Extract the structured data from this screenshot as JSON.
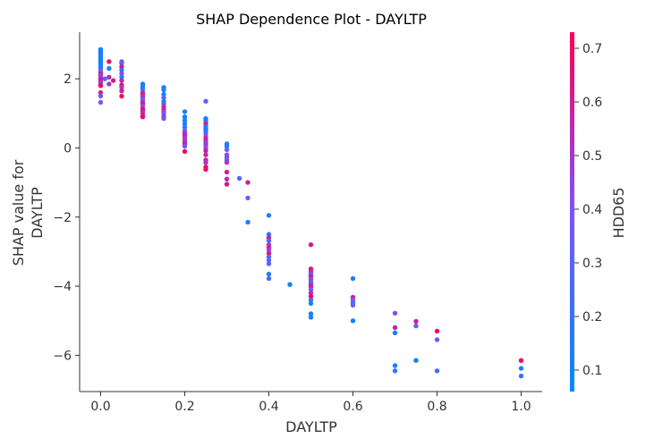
{
  "chart_data": {
    "type": "scatter",
    "title": "SHAP Dependence Plot - DAYLTP",
    "xlabel": "DAYLTP",
    "ylabel_lines": [
      "SHAP value for",
      "DAYLTP"
    ],
    "xlim": [
      -0.05,
      1.05
    ],
    "ylim": [
      -7.05,
      3.35
    ],
    "x_ticks": [
      0.0,
      0.2,
      0.4,
      0.6,
      0.8,
      1.0
    ],
    "x_tick_labels": [
      "0.0",
      "0.2",
      "0.4",
      "0.6",
      "0.8",
      "1.0"
    ],
    "y_ticks": [
      2,
      0,
      -2,
      -4,
      -6
    ],
    "y_tick_labels": [
      "2",
      "0",
      "−2",
      "−4",
      "−6"
    ],
    "colorbar": {
      "label": "HDD65",
      "range": [
        0.06,
        0.73
      ],
      "ticks": [
        0.1,
        0.2,
        0.3,
        0.4,
        0.5,
        0.6,
        0.7
      ],
      "tick_labels": [
        "0.1",
        "0.2",
        "0.3",
        "0.4",
        "0.5",
        "0.6",
        "0.7"
      ],
      "colormap": [
        "#008afb",
        "#7c52ff",
        "#ff0052"
      ]
    },
    "grid": false,
    "points": [
      {
        "x": 0.0,
        "y": 2.85,
        "c": 0.12
      },
      {
        "x": 0.0,
        "y": 2.8,
        "c": 0.1
      },
      {
        "x": 0.0,
        "y": 2.75,
        "c": 0.14
      },
      {
        "x": 0.0,
        "y": 2.7,
        "c": 0.11
      },
      {
        "x": 0.0,
        "y": 2.62,
        "c": 0.13
      },
      {
        "x": 0.0,
        "y": 2.55,
        "c": 0.1
      },
      {
        "x": 0.0,
        "y": 2.48,
        "c": 0.15
      },
      {
        "x": 0.0,
        "y": 2.42,
        "c": 0.12
      },
      {
        "x": 0.0,
        "y": 2.36,
        "c": 0.11
      },
      {
        "x": 0.0,
        "y": 2.3,
        "c": 0.22
      },
      {
        "x": 0.0,
        "y": 2.22,
        "c": 0.35
      },
      {
        "x": 0.0,
        "y": 2.15,
        "c": 0.6
      },
      {
        "x": 0.0,
        "y": 2.1,
        "c": 0.5
      },
      {
        "x": 0.0,
        "y": 2.05,
        "c": 0.42
      },
      {
        "x": 0.0,
        "y": 1.98,
        "c": 0.65
      },
      {
        "x": 0.0,
        "y": 1.92,
        "c": 0.55
      },
      {
        "x": 0.0,
        "y": 1.85,
        "c": 0.45
      },
      {
        "x": 0.0,
        "y": 1.8,
        "c": 0.7
      },
      {
        "x": 0.0,
        "y": 1.6,
        "c": 0.6
      },
      {
        "x": 0.0,
        "y": 1.5,
        "c": 0.3
      },
      {
        "x": 0.0,
        "y": 1.32,
        "c": 0.4
      },
      {
        "x": 0.02,
        "y": 2.5,
        "c": 0.68
      },
      {
        "x": 0.02,
        "y": 2.3,
        "c": 0.12
      },
      {
        "x": 0.02,
        "y": 2.05,
        "c": 0.55
      },
      {
        "x": 0.02,
        "y": 1.85,
        "c": 0.5
      },
      {
        "x": 0.01,
        "y": 2.0,
        "c": 0.3
      },
      {
        "x": 0.03,
        "y": 1.95,
        "c": 0.62
      },
      {
        "x": 0.05,
        "y": 2.5,
        "c": 0.35
      },
      {
        "x": 0.05,
        "y": 2.45,
        "c": 0.3
      },
      {
        "x": 0.05,
        "y": 2.35,
        "c": 0.62
      },
      {
        "x": 0.05,
        "y": 2.25,
        "c": 0.12
      },
      {
        "x": 0.05,
        "y": 2.15,
        "c": 0.45
      },
      {
        "x": 0.05,
        "y": 2.05,
        "c": 0.15
      },
      {
        "x": 0.05,
        "y": 1.95,
        "c": 0.55
      },
      {
        "x": 0.05,
        "y": 1.82,
        "c": 0.65
      },
      {
        "x": 0.05,
        "y": 1.75,
        "c": 0.5
      },
      {
        "x": 0.05,
        "y": 1.65,
        "c": 0.6
      },
      {
        "x": 0.05,
        "y": 1.5,
        "c": 0.7
      },
      {
        "x": 0.1,
        "y": 1.85,
        "c": 0.12
      },
      {
        "x": 0.1,
        "y": 1.78,
        "c": 0.2
      },
      {
        "x": 0.1,
        "y": 1.7,
        "c": 0.14
      },
      {
        "x": 0.1,
        "y": 1.6,
        "c": 0.55
      },
      {
        "x": 0.1,
        "y": 1.55,
        "c": 0.6
      },
      {
        "x": 0.1,
        "y": 1.48,
        "c": 0.5
      },
      {
        "x": 0.1,
        "y": 1.4,
        "c": 0.3
      },
      {
        "x": 0.1,
        "y": 1.35,
        "c": 0.45
      },
      {
        "x": 0.1,
        "y": 1.28,
        "c": 0.65
      },
      {
        "x": 0.1,
        "y": 1.2,
        "c": 0.4
      },
      {
        "x": 0.1,
        "y": 1.12,
        "c": 0.7
      },
      {
        "x": 0.1,
        "y": 1.05,
        "c": 0.55
      },
      {
        "x": 0.1,
        "y": 0.98,
        "c": 0.6
      },
      {
        "x": 0.1,
        "y": 0.9,
        "c": 0.68
      },
      {
        "x": 0.15,
        "y": 1.75,
        "c": 0.12
      },
      {
        "x": 0.15,
        "y": 1.68,
        "c": 0.15
      },
      {
        "x": 0.15,
        "y": 1.55,
        "c": 0.11
      },
      {
        "x": 0.15,
        "y": 1.45,
        "c": 0.3
      },
      {
        "x": 0.15,
        "y": 1.35,
        "c": 0.12
      },
      {
        "x": 0.15,
        "y": 1.28,
        "c": 0.2
      },
      {
        "x": 0.15,
        "y": 1.2,
        "c": 0.55
      },
      {
        "x": 0.15,
        "y": 1.12,
        "c": 0.6
      },
      {
        "x": 0.15,
        "y": 1.05,
        "c": 0.45
      },
      {
        "x": 0.15,
        "y": 0.98,
        "c": 0.4
      },
      {
        "x": 0.15,
        "y": 0.9,
        "c": 0.5
      },
      {
        "x": 0.15,
        "y": 0.85,
        "c": 0.35
      },
      {
        "x": 0.2,
        "y": 1.05,
        "c": 0.12
      },
      {
        "x": 0.2,
        "y": 0.9,
        "c": 0.12
      },
      {
        "x": 0.2,
        "y": 0.8,
        "c": 0.14
      },
      {
        "x": 0.2,
        "y": 0.7,
        "c": 0.11
      },
      {
        "x": 0.2,
        "y": 0.6,
        "c": 0.2
      },
      {
        "x": 0.2,
        "y": 0.5,
        "c": 0.3
      },
      {
        "x": 0.2,
        "y": 0.42,
        "c": 0.55
      },
      {
        "x": 0.2,
        "y": 0.35,
        "c": 0.6
      },
      {
        "x": 0.2,
        "y": 0.28,
        "c": 0.45
      },
      {
        "x": 0.2,
        "y": 0.2,
        "c": 0.5
      },
      {
        "x": 0.2,
        "y": 0.12,
        "c": 0.62
      },
      {
        "x": 0.2,
        "y": 0.05,
        "c": 0.4
      },
      {
        "x": 0.2,
        "y": -0.1,
        "c": 0.7
      },
      {
        "x": 0.25,
        "y": 1.35,
        "c": 0.3
      },
      {
        "x": 0.25,
        "y": 0.85,
        "c": 0.12
      },
      {
        "x": 0.25,
        "y": 0.78,
        "c": 0.15
      },
      {
        "x": 0.25,
        "y": 0.7,
        "c": 0.65
      },
      {
        "x": 0.25,
        "y": 0.62,
        "c": 0.14
      },
      {
        "x": 0.25,
        "y": 0.55,
        "c": 0.18
      },
      {
        "x": 0.25,
        "y": 0.48,
        "c": 0.11
      },
      {
        "x": 0.25,
        "y": 0.4,
        "c": 0.35
      },
      {
        "x": 0.25,
        "y": 0.3,
        "c": 0.55
      },
      {
        "x": 0.25,
        "y": 0.22,
        "c": 0.6
      },
      {
        "x": 0.25,
        "y": 0.15,
        "c": 0.45
      },
      {
        "x": 0.25,
        "y": 0.08,
        "c": 0.5
      },
      {
        "x": 0.25,
        "y": 0.0,
        "c": 0.4
      },
      {
        "x": 0.25,
        "y": -0.08,
        "c": 0.62
      },
      {
        "x": 0.25,
        "y": -0.2,
        "c": 0.55
      },
      {
        "x": 0.25,
        "y": -0.35,
        "c": 0.6
      },
      {
        "x": 0.25,
        "y": -0.42,
        "c": 0.5
      },
      {
        "x": 0.25,
        "y": -0.55,
        "c": 0.7
      },
      {
        "x": 0.25,
        "y": -0.62,
        "c": 0.68
      },
      {
        "x": 0.3,
        "y": 0.12,
        "c": 0.2
      },
      {
        "x": 0.3,
        "y": 0.05,
        "c": 0.12
      },
      {
        "x": 0.3,
        "y": -0.05,
        "c": 0.35
      },
      {
        "x": 0.3,
        "y": -0.2,
        "c": 0.4
      },
      {
        "x": 0.3,
        "y": -0.28,
        "c": 0.45
      },
      {
        "x": 0.3,
        "y": -0.35,
        "c": 0.3
      },
      {
        "x": 0.3,
        "y": -0.42,
        "c": 0.5
      },
      {
        "x": 0.3,
        "y": -0.7,
        "c": 0.6
      },
      {
        "x": 0.3,
        "y": -0.9,
        "c": 0.55
      },
      {
        "x": 0.3,
        "y": -1.05,
        "c": 0.65
      },
      {
        "x": 0.33,
        "y": -0.88,
        "c": 0.3
      },
      {
        "x": 0.35,
        "y": -1.0,
        "c": 0.6
      },
      {
        "x": 0.35,
        "y": -1.45,
        "c": 0.4
      },
      {
        "x": 0.35,
        "y": -2.15,
        "c": 0.12
      },
      {
        "x": 0.4,
        "y": -1.95,
        "c": 0.15
      },
      {
        "x": 0.4,
        "y": -2.5,
        "c": 0.2
      },
      {
        "x": 0.4,
        "y": -2.6,
        "c": 0.6
      },
      {
        "x": 0.4,
        "y": -2.68,
        "c": 0.25
      },
      {
        "x": 0.4,
        "y": -2.8,
        "c": 0.5
      },
      {
        "x": 0.4,
        "y": -2.88,
        "c": 0.62
      },
      {
        "x": 0.4,
        "y": -2.95,
        "c": 0.45
      },
      {
        "x": 0.4,
        "y": -3.05,
        "c": 0.65
      },
      {
        "x": 0.4,
        "y": -3.15,
        "c": 0.3
      },
      {
        "x": 0.4,
        "y": -3.25,
        "c": 0.28
      },
      {
        "x": 0.4,
        "y": -3.35,
        "c": 0.35
      },
      {
        "x": 0.4,
        "y": -3.65,
        "c": 0.15
      },
      {
        "x": 0.4,
        "y": -3.78,
        "c": 0.25
      },
      {
        "x": 0.45,
        "y": -3.95,
        "c": 0.12
      },
      {
        "x": 0.5,
        "y": -2.8,
        "c": 0.6
      },
      {
        "x": 0.5,
        "y": -3.5,
        "c": 0.65
      },
      {
        "x": 0.5,
        "y": -3.58,
        "c": 0.55
      },
      {
        "x": 0.5,
        "y": -3.65,
        "c": 0.35
      },
      {
        "x": 0.5,
        "y": -3.72,
        "c": 0.62
      },
      {
        "x": 0.5,
        "y": -3.8,
        "c": 0.45
      },
      {
        "x": 0.5,
        "y": -3.88,
        "c": 0.3
      },
      {
        "x": 0.5,
        "y": -3.95,
        "c": 0.5
      },
      {
        "x": 0.5,
        "y": -4.02,
        "c": 0.6
      },
      {
        "x": 0.5,
        "y": -4.1,
        "c": 0.4
      },
      {
        "x": 0.5,
        "y": -4.2,
        "c": 0.55
      },
      {
        "x": 0.5,
        "y": -4.3,
        "c": 0.7
      },
      {
        "x": 0.5,
        "y": -4.4,
        "c": 0.2
      },
      {
        "x": 0.5,
        "y": -4.5,
        "c": 0.12
      },
      {
        "x": 0.5,
        "y": -4.8,
        "c": 0.15
      },
      {
        "x": 0.5,
        "y": -4.9,
        "c": 0.12
      },
      {
        "x": 0.6,
        "y": -3.78,
        "c": 0.12
      },
      {
        "x": 0.6,
        "y": -4.32,
        "c": 0.6
      },
      {
        "x": 0.6,
        "y": -4.4,
        "c": 0.4
      },
      {
        "x": 0.6,
        "y": -4.48,
        "c": 0.3
      },
      {
        "x": 0.6,
        "y": -4.55,
        "c": 0.35
      },
      {
        "x": 0.6,
        "y": -5.0,
        "c": 0.12
      },
      {
        "x": 0.7,
        "y": -4.78,
        "c": 0.4
      },
      {
        "x": 0.7,
        "y": -5.2,
        "c": 0.6
      },
      {
        "x": 0.7,
        "y": -5.35,
        "c": 0.12
      },
      {
        "x": 0.7,
        "y": -6.3,
        "c": 0.12
      },
      {
        "x": 0.7,
        "y": -6.45,
        "c": 0.2
      },
      {
        "x": 0.75,
        "y": -5.02,
        "c": 0.6
      },
      {
        "x": 0.75,
        "y": -5.15,
        "c": 0.35
      },
      {
        "x": 0.75,
        "y": -6.15,
        "c": 0.12
      },
      {
        "x": 0.8,
        "y": -5.3,
        "c": 0.7
      },
      {
        "x": 0.8,
        "y": -5.55,
        "c": 0.3
      },
      {
        "x": 0.8,
        "y": -6.45,
        "c": 0.25
      },
      {
        "x": 1.0,
        "y": -6.15,
        "c": 0.7
      },
      {
        "x": 1.0,
        "y": -6.38,
        "c": 0.12
      },
      {
        "x": 1.0,
        "y": -6.6,
        "c": 0.25
      }
    ]
  }
}
